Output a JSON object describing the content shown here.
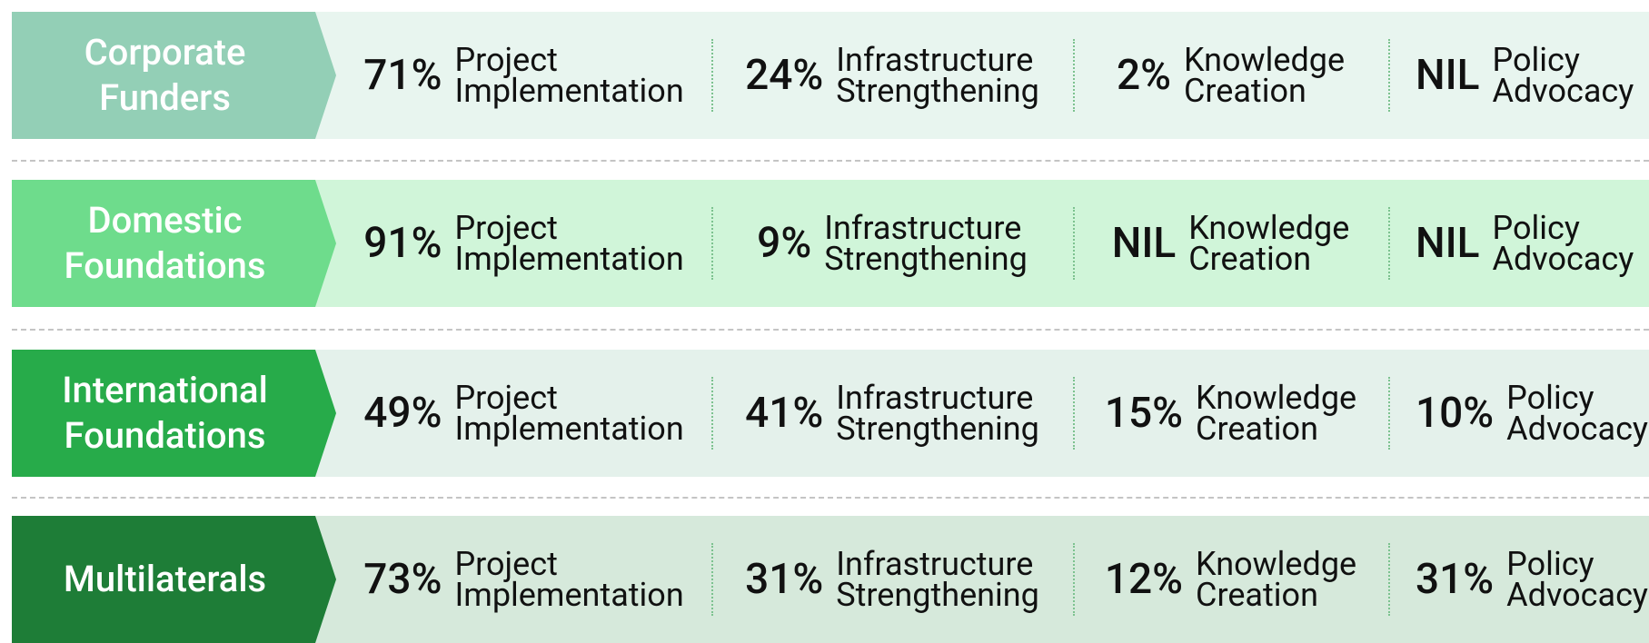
{
  "rows": [
    {
      "label": "Corporate Funders",
      "cells": [
        {
          "value": "71%",
          "label": "Project Implementation"
        },
        {
          "value": "24%",
          "label": "Infrastructure Strengthening"
        },
        {
          "value": "2%",
          "label": "Knowledge Creation"
        },
        {
          "value": "NIL",
          "label": "Policy Advocacy"
        }
      ]
    },
    {
      "label": "Domestic Foundations",
      "cells": [
        {
          "value": "91%",
          "label": "Project Implementation"
        },
        {
          "value": "9%",
          "label": "Infrastructure Strengthening"
        },
        {
          "value": "NIL",
          "label": "Knowledge Creation"
        },
        {
          "value": "NIL",
          "label": "Policy Advocacy"
        }
      ]
    },
    {
      "label": "International Foundations",
      "cells": [
        {
          "value": "49%",
          "label": "Project Implementation"
        },
        {
          "value": "41%",
          "label": "Infrastructure Strengthening"
        },
        {
          "value": "15%",
          "label": "Knowledge Creation"
        },
        {
          "value": "10%",
          "label": "Policy Advocacy"
        }
      ]
    },
    {
      "label": "Multilaterals",
      "cells": [
        {
          "value": "73%",
          "label": "Project Implementation"
        },
        {
          "value": "31%",
          "label": "Infrastructure Strengthening"
        },
        {
          "value": "12%",
          "label": "Knowledge Creation"
        },
        {
          "value": "31%",
          "label": "Policy Advocacy"
        }
      ]
    }
  ]
}
